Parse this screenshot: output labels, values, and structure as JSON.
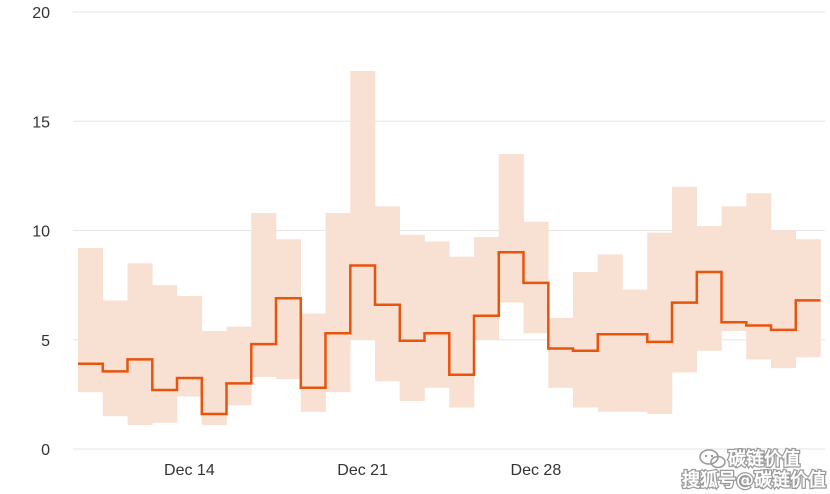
{
  "chart_data": {
    "type": "line",
    "title": "",
    "xlabel": "",
    "ylabel": "",
    "ylim": [
      0,
      20
    ],
    "y_ticks": [
      "0",
      "5",
      "10",
      "15",
      "20"
    ],
    "x_ticks": [
      "Dec 14",
      "Dec 21",
      "Dec 28"
    ],
    "grid": true,
    "legend": "none",
    "colors": {
      "line": "#e8530e",
      "band": "#f8e0d2",
      "grid": "#e6e6e6"
    },
    "x": [
      "Dec 10",
      "Dec 11",
      "Dec 12",
      "Dec 13",
      "Dec 14",
      "Dec 15",
      "Dec 16",
      "Dec 17",
      "Dec 18",
      "Dec 19",
      "Dec 20",
      "Dec 21",
      "Dec 22",
      "Dec 23",
      "Dec 24",
      "Dec 25",
      "Dec 26",
      "Dec 27",
      "Dec 28",
      "Dec 29",
      "Dec 30",
      "Dec 31",
      "Jan 1",
      "Jan 2",
      "Jan 3",
      "Jan 4",
      "Jan 5",
      "Jan 6",
      "Jan 7",
      "Jan 8"
    ],
    "series": [
      {
        "type": "step",
        "values": [
          3.9,
          3.55,
          4.1,
          2.7,
          3.25,
          1.6,
          3.0,
          4.8,
          6.9,
          2.8,
          5.3,
          8.4,
          6.6,
          4.95,
          5.3,
          3.4,
          6.1,
          9.0,
          7.6,
          4.6,
          4.5,
          5.25,
          5.25,
          4.9,
          6.7,
          8.1,
          5.8,
          5.65,
          5.45,
          6.8
        ]
      },
      {
        "type": "range",
        "low": [
          2.6,
          1.5,
          1.1,
          1.2,
          2.4,
          1.1,
          2.0,
          3.3,
          3.2,
          1.7,
          2.6,
          5.0,
          3.1,
          2.2,
          2.8,
          1.9,
          5.0,
          6.7,
          5.3,
          2.8,
          1.9,
          1.7,
          1.7,
          1.6,
          3.5,
          4.5,
          5.4,
          4.1,
          3.7,
          4.2
        ],
        "high": [
          9.2,
          6.8,
          8.5,
          7.5,
          7.0,
          5.4,
          5.6,
          10.8,
          9.6,
          6.2,
          10.8,
          17.3,
          11.1,
          9.8,
          9.5,
          8.8,
          9.7,
          13.5,
          10.4,
          6.0,
          8.1,
          8.9,
          7.3,
          9.9,
          12.0,
          10.2,
          11.1,
          11.7,
          10.0,
          9.6
        ]
      }
    ]
  },
  "watermark": {
    "top_line": "碳链价值",
    "bottom_line": "搜狐号@碳链价值"
  }
}
